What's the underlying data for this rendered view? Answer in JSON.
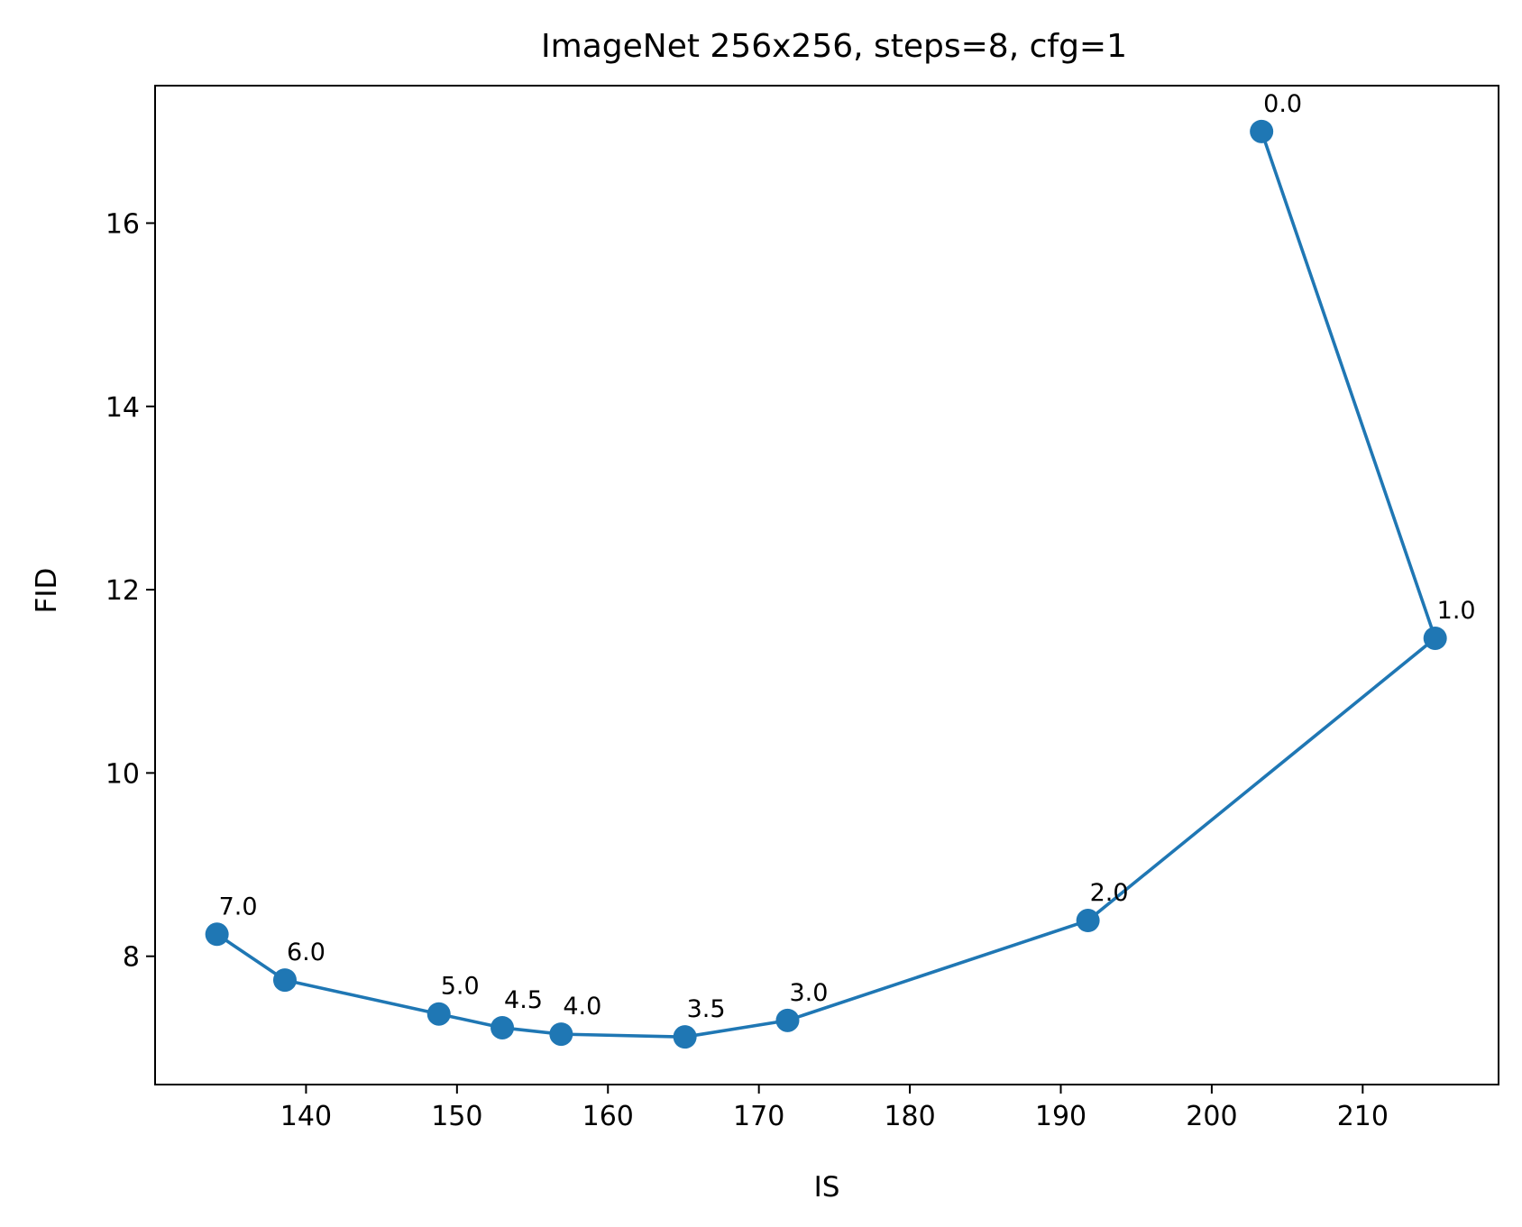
{
  "chart_data": {
    "type": "line",
    "title": "ImageNet 256x256, steps=8, cfg=1",
    "xlabel": "IS",
    "ylabel": "FID",
    "xlim": [
      130,
      219
    ],
    "ylim": [
      6.6,
      17.5
    ],
    "xticks": [
      140,
      150,
      160,
      170,
      180,
      190,
      200,
      210
    ],
    "yticks": [
      8,
      10,
      12,
      14,
      16
    ],
    "grid": false,
    "color": "#1f77b4",
    "series": [
      {
        "points": [
          {
            "x": 203.3,
            "y": 17.0,
            "label": "0.0"
          },
          {
            "x": 214.8,
            "y": 11.47,
            "label": "1.0"
          },
          {
            "x": 191.8,
            "y": 8.39,
            "label": "2.0"
          },
          {
            "x": 171.9,
            "y": 7.3,
            "label": "3.0"
          },
          {
            "x": 165.1,
            "y": 7.12,
            "label": "3.5"
          },
          {
            "x": 156.9,
            "y": 7.15,
            "label": "4.0"
          },
          {
            "x": 153.0,
            "y": 7.22,
            "label": "4.5"
          },
          {
            "x": 148.8,
            "y": 7.37,
            "label": "5.0"
          },
          {
            "x": 138.6,
            "y": 7.74,
            "label": "6.0"
          },
          {
            "x": 134.1,
            "y": 8.24,
            "label": "7.0"
          }
        ]
      }
    ]
  }
}
